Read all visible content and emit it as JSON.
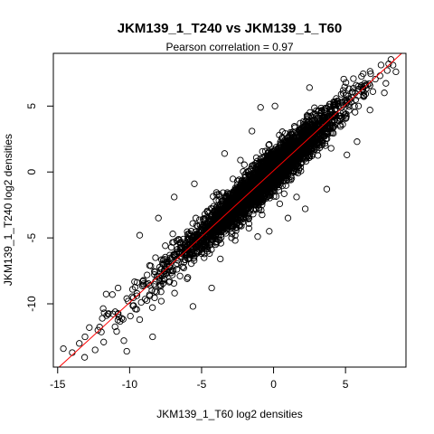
{
  "chart_data": {
    "type": "scatter",
    "title": "JKM139_1_T240 vs JKM139_1_T60",
    "subtitle": "Pearson correlation =  0.97",
    "xlabel": "JKM139_1_T60 log2 densities",
    "ylabel": "JKM139_1_T240 log2 densities",
    "xlim": [
      -15.3,
      9.2
    ],
    "ylim": [
      -14.8,
      9.0
    ],
    "xticks": [
      -15,
      -10,
      -5,
      0,
      5
    ],
    "yticks": [
      -10,
      -5,
      0,
      5
    ],
    "xtick_labels": [
      "-15",
      "-10",
      "-5",
      "0",
      "5"
    ],
    "ytick_labels": [
      "-10",
      "-5",
      "0",
      "5"
    ],
    "grid": false,
    "marker": "open-circle",
    "point_color": "#000000",
    "fit_line": {
      "slope": 1.0,
      "intercept": 0.1,
      "color": "#ff0000"
    },
    "n_points": 4000,
    "sample_points": [
      [
        -14.6,
        -13.4
      ],
      [
        -12.8,
        -11.8
      ],
      [
        -12.2,
        -12.0
      ],
      [
        -11.8,
        -12.9
      ],
      [
        -11.6,
        -10.9
      ],
      [
        -11.0,
        -10.6
      ],
      [
        -10.4,
        -12.8
      ],
      [
        -10.8,
        -8.8
      ],
      [
        -10.2,
        -9.6
      ],
      [
        -9.3,
        -11.2
      ],
      [
        -9.8,
        -8.9
      ],
      [
        -9.1,
        -8.3
      ],
      [
        -8.6,
        -9.4
      ],
      [
        -8.2,
        -6.5
      ],
      [
        -7.6,
        -8.1
      ],
      [
        -7.2,
        -6.3
      ],
      [
        -6.6,
        -5.1
      ],
      [
        -6.3,
        -7.2
      ],
      [
        -5.4,
        -3.5
      ],
      [
        -5.0,
        -6.2
      ],
      [
        -4.5,
        -3.1
      ],
      [
        -4.0,
        -5.3
      ],
      [
        -3.3,
        -2.0
      ],
      [
        -2.6,
        -4.0
      ],
      [
        -2.1,
        -0.7
      ],
      [
        -1.4,
        -2.5
      ],
      [
        -0.7,
        0.8
      ],
      [
        0.0,
        -1.2
      ],
      [
        0.6,
        1.4
      ],
      [
        1.2,
        -0.6
      ],
      [
        1.8,
        2.6
      ],
      [
        2.5,
        1.1
      ],
      [
        3.1,
        3.8
      ],
      [
        3.6,
        2.0
      ],
      [
        4.2,
        4.3
      ],
      [
        4.8,
        3.6
      ],
      [
        5.3,
        5.5
      ],
      [
        5.9,
        5.0
      ],
      [
        6.4,
        6.6
      ],
      [
        6.9,
        6.1
      ],
      [
        7.4,
        7.3
      ],
      [
        7.9,
        7.7
      ],
      [
        8.3,
        8.1
      ],
      [
        8.5,
        7.6
      ],
      [
        3.7,
        -1.3
      ],
      [
        1.0,
        -3.5
      ],
      [
        -1.5,
        3.1
      ],
      [
        -3.4,
        1.4
      ],
      [
        -5.5,
        -0.9
      ],
      [
        -6.9,
        -1.9
      ],
      [
        -5.6,
        -10.2
      ],
      [
        -8.4,
        -12.5
      ],
      [
        -11.9,
        -11.1
      ],
      [
        -10.2,
        -13.6
      ],
      [
        -13.1,
        -12.5
      ],
      [
        -8.0,
        -3.5
      ],
      [
        -9.3,
        -4.8
      ],
      [
        -4.3,
        -8.8
      ],
      [
        -0.3,
        -4.5
      ],
      [
        2.2,
        -2.8
      ],
      [
        -0.9,
        4.9
      ],
      [
        2.5,
        6.4
      ],
      [
        0.1,
        5.0
      ],
      [
        5.1,
        1.3
      ],
      [
        5.8,
        2.3
      ],
      [
        6.7,
        4.7
      ],
      [
        7.7,
        6.0
      ],
      [
        8.0,
        8.2
      ],
      [
        -12.4,
        -13.5
      ],
      [
        -13.5,
        -13.0
      ],
      [
        -11.2,
        -9.3
      ],
      [
        -10.9,
        -12.1
      ],
      [
        -9.6,
        -10.4
      ],
      [
        -7.8,
        -9.8
      ],
      [
        -7.0,
        -4.7
      ],
      [
        -6.0,
        -8.1
      ],
      [
        -3.7,
        -6.6
      ],
      [
        -2.3,
        0.9
      ],
      [
        -1.1,
        -4.9
      ],
      [
        0.4,
        2.8
      ],
      [
        1.6,
        -1.9
      ],
      [
        2.9,
        4.4
      ],
      [
        4.0,
        1.8
      ],
      [
        4.7,
        5.9
      ]
    ]
  }
}
